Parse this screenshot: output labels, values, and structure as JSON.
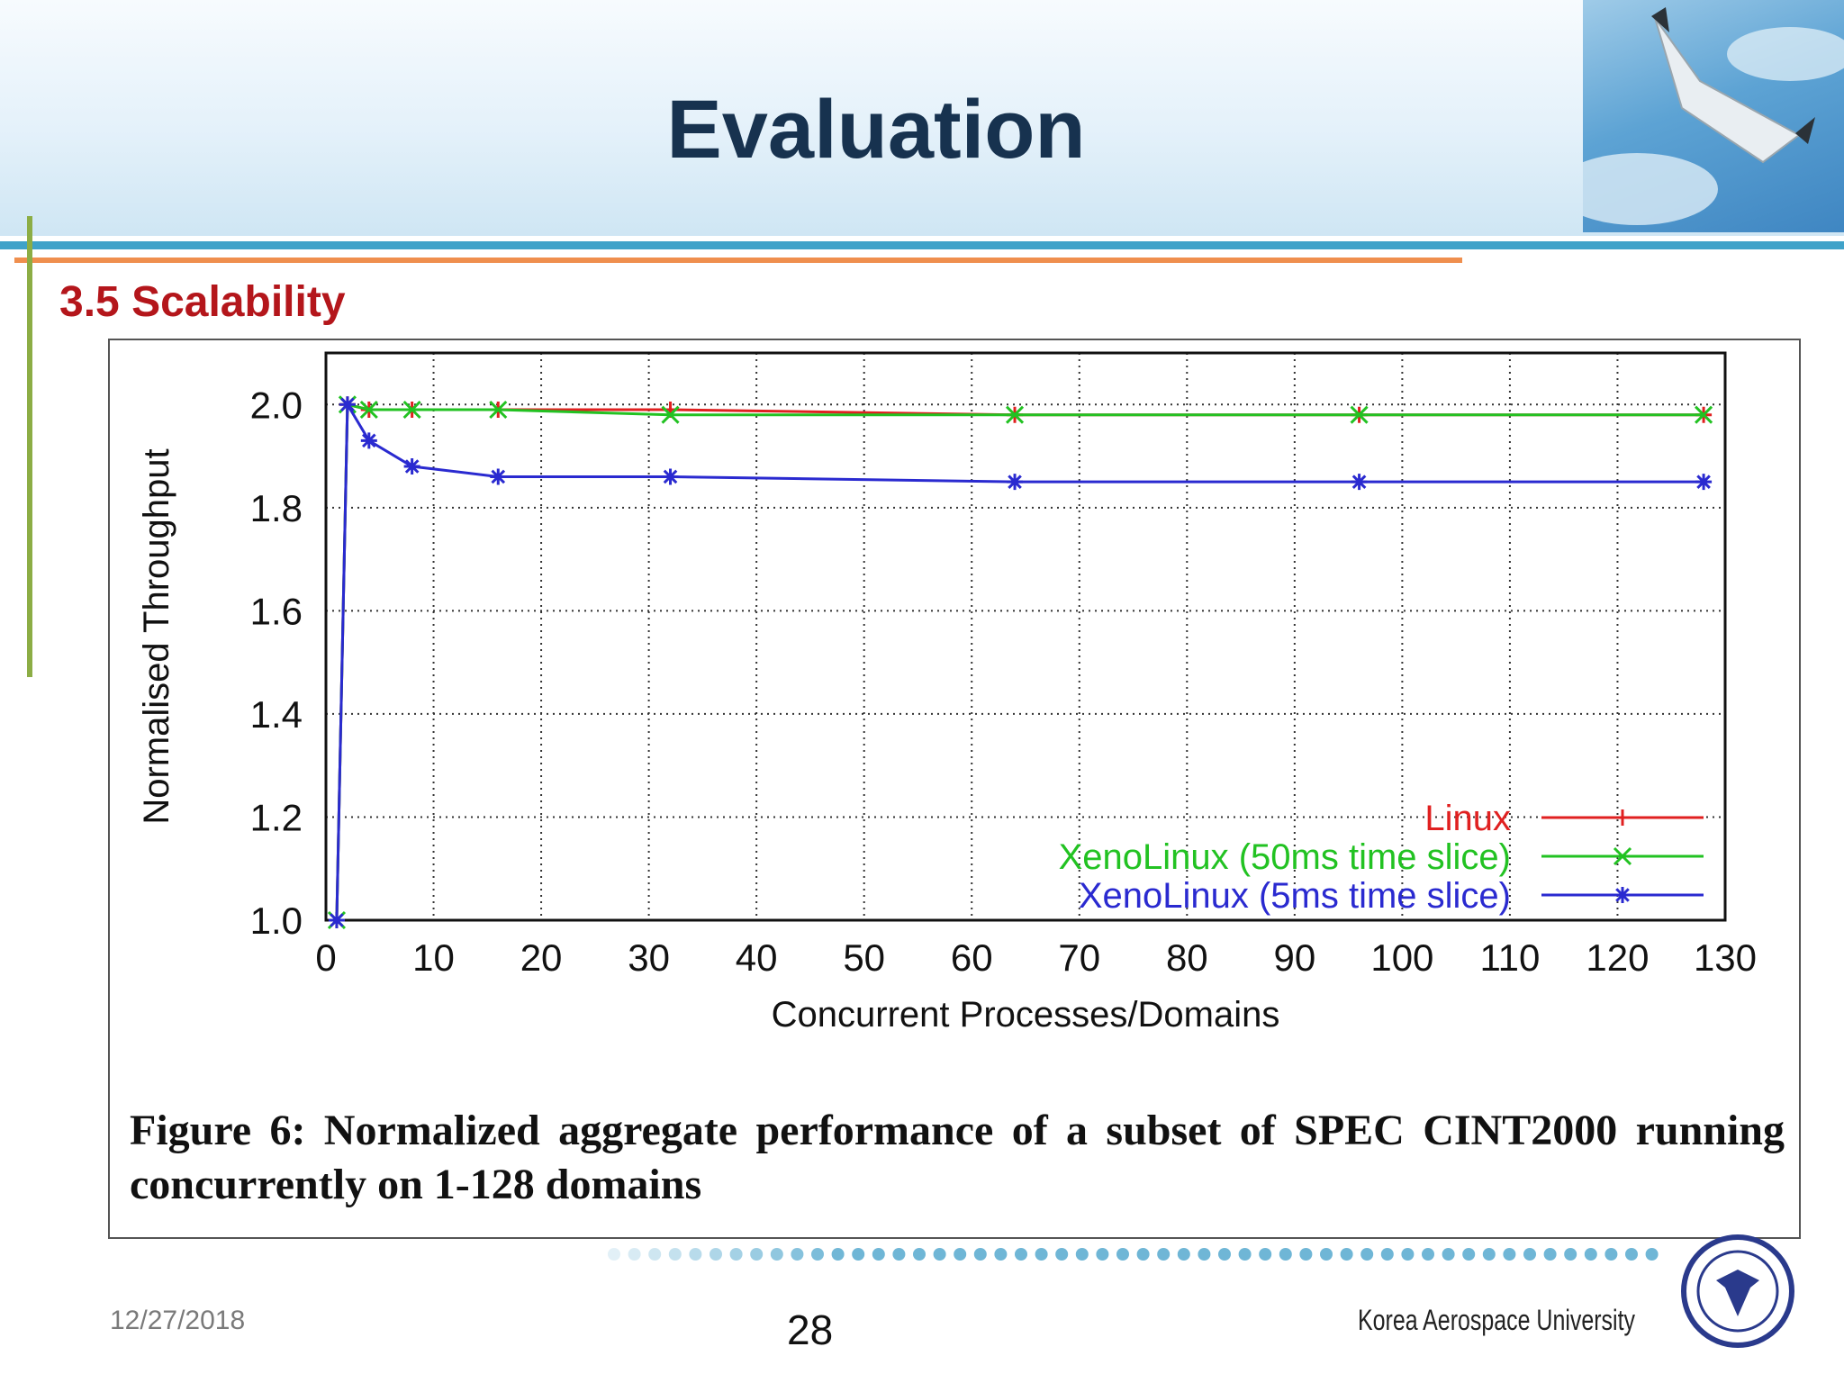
{
  "slide": {
    "title": "Evaluation",
    "section": "3.5 Scalability",
    "footer_date": "12/27/2018",
    "page_number": "28",
    "university": "Korea Aerospace University"
  },
  "colors": {
    "title": "#17324f",
    "section": "#b4161b",
    "rule_blue": "#3fa2c9",
    "rule_orange": "#ef8f4e",
    "rule_green": "#8cad45",
    "dot": "#6fb6d6"
  },
  "caption": "Figure 6: Normalized aggregate performance of a subset of SPEC CINT2000 running concurrently on 1-128 domains",
  "chart_data": {
    "type": "line",
    "xlabel": "Concurrent Processes/Domains",
    "ylabel": "Normalised Throughput",
    "xlim": [
      0,
      130
    ],
    "ylim": [
      1.0,
      2.1
    ],
    "xticks": [
      0,
      10,
      20,
      30,
      40,
      50,
      60,
      70,
      80,
      90,
      100,
      110,
      120,
      130
    ],
    "yticks": [
      "1.0",
      "1.2",
      "1.4",
      "1.6",
      "1.8",
      "2.0"
    ],
    "grid": true,
    "legend_position": "bottom-right",
    "series": [
      {
        "name": "Linux",
        "color": "#e02020",
        "marker": "+",
        "x": [
          1,
          2,
          4,
          8,
          16,
          32,
          64,
          96,
          128
        ],
        "y": [
          1.0,
          2.0,
          1.99,
          1.99,
          1.99,
          1.99,
          1.98,
          1.98,
          1.98
        ]
      },
      {
        "name": "XenoLinux (50ms time slice)",
        "color": "#22c222",
        "marker": "x",
        "x": [
          1,
          2,
          4,
          8,
          16,
          32,
          64,
          96,
          128
        ],
        "y": [
          1.0,
          2.0,
          1.99,
          1.99,
          1.99,
          1.98,
          1.98,
          1.98,
          1.98
        ]
      },
      {
        "name": "XenoLinux (5ms time slice)",
        "color": "#2a2ad0",
        "marker": "*",
        "x": [
          1,
          2,
          4,
          8,
          16,
          32,
          64,
          96,
          128
        ],
        "y": [
          1.0,
          2.0,
          1.93,
          1.88,
          1.86,
          1.86,
          1.85,
          1.85,
          1.85
        ]
      }
    ]
  }
}
